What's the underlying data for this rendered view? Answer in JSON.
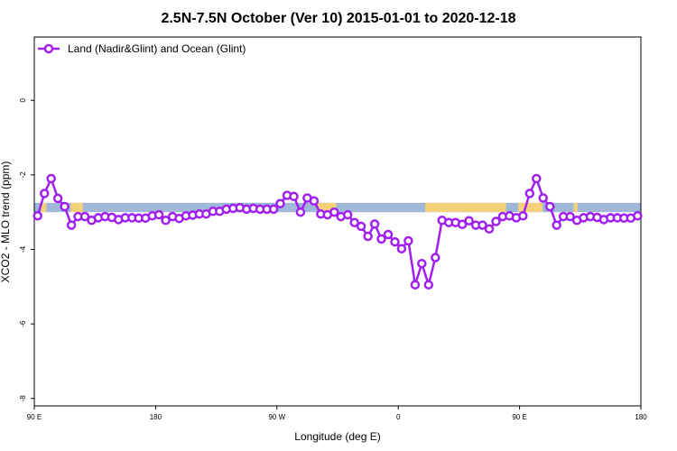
{
  "chart_data": {
    "type": "line",
    "title": "2.5N-7.5N October (Ver 10)   2015-01-01 to 2020-12-18",
    "xlabel": "Longitude (deg E)",
    "ylabel": "XCO2 - MLO trend (ppm)",
    "xlim": [
      90,
      540
    ],
    "ylim": [
      -8.2,
      1.7
    ],
    "x_ticks": [
      {
        "value": 90,
        "label": "90 E"
      },
      {
        "value": 180,
        "label": "180"
      },
      {
        "value": 270,
        "label": "90 W"
      },
      {
        "value": 360,
        "label": "0"
      },
      {
        "value": 450,
        "label": "90 E"
      },
      {
        "value": 540,
        "label": "180"
      }
    ],
    "y_ticks": [
      {
        "value": 0,
        "label": "0"
      },
      {
        "value": -2,
        "label": "-2"
      },
      {
        "value": -4,
        "label": "-4"
      },
      {
        "value": -6,
        "label": "-6"
      },
      {
        "value": -8,
        "label": "-8"
      }
    ],
    "legend": {
      "position": "top-left"
    },
    "grid": false,
    "land_mask": {
      "y_range": [
        -3.0,
        -2.75
      ],
      "ocean_color": "#9fb7d8",
      "land_color": "#f5d27a",
      "land_segments": [
        [
          95,
          99
        ],
        [
          117,
          126
        ],
        [
          300,
          314
        ],
        [
          380,
          440
        ],
        [
          449,
          467
        ],
        [
          490,
          493
        ]
      ]
    },
    "series": [
      {
        "name": "Land (Nadir&Glint) and Ocean (Glint)",
        "color": "#a020f0",
        "x": [
          92.5,
          97.5,
          102.5,
          107.5,
          112.5,
          117.5,
          122.5,
          127.5,
          132.5,
          137.5,
          142.5,
          147.5,
          152.5,
          157.5,
          162.5,
          167.5,
          172.5,
          177.5,
          182.5,
          187.5,
          192.5,
          197.5,
          202.5,
          207.5,
          212.5,
          217.5,
          222.5,
          227.5,
          232.5,
          237.5,
          242.5,
          247.5,
          252.5,
          257.5,
          262.5,
          267.5,
          272.5,
          277.5,
          282.5,
          287.5,
          292.5,
          297.5,
          302.5,
          307.5,
          312.5,
          317.5,
          322.5,
          327.5,
          332.5,
          337.5,
          342.5,
          347.5,
          352.5,
          357.5,
          362.5,
          367.5,
          372.5,
          377.5,
          382.5,
          387.5,
          392.5,
          397.5,
          402.5,
          407.5,
          412.5,
          417.5,
          422.5,
          427.5,
          432.5,
          437.5,
          442.5,
          447.5,
          452.5,
          457.5,
          462.5,
          467.5,
          472.5,
          477.5,
          482.5,
          487.5,
          492.5,
          497.5,
          502.5,
          507.5,
          512.5,
          517.5,
          522.5,
          527.5,
          532.5,
          537.5
        ],
        "y": [
          -3.1,
          -2.5,
          -2.1,
          -2.63,
          -2.85,
          -3.35,
          -3.12,
          -3.12,
          -3.22,
          -3.15,
          -3.12,
          -3.14,
          -3.2,
          -3.15,
          -3.15,
          -3.16,
          -3.16,
          -3.1,
          -3.07,
          -3.22,
          -3.12,
          -3.17,
          -3.1,
          -3.08,
          -3.05,
          -3.05,
          -2.98,
          -2.98,
          -2.92,
          -2.9,
          -2.88,
          -2.92,
          -2.9,
          -2.92,
          -2.92,
          -2.92,
          -2.77,
          -2.55,
          -2.58,
          -3.0,
          -2.62,
          -2.7,
          -3.05,
          -3.07,
          -3.0,
          -3.12,
          -3.07,
          -3.28,
          -3.38,
          -3.65,
          -3.32,
          -3.72,
          -3.6,
          -3.8,
          -3.98,
          -3.77,
          -4.95,
          -4.38,
          -4.95,
          -4.22,
          -3.22,
          -3.28,
          -3.28,
          -3.33,
          -3.23,
          -3.35,
          -3.35,
          -3.45,
          -3.25,
          -3.12,
          -3.1,
          -3.15,
          -3.1,
          -2.5,
          -2.1,
          -2.62,
          -2.85,
          -3.35,
          -3.12,
          -3.12,
          -3.22,
          -3.15,
          -3.12,
          -3.14,
          -3.2,
          -3.15,
          -3.15,
          -3.16,
          -3.16,
          -3.1
        ]
      }
    ]
  }
}
